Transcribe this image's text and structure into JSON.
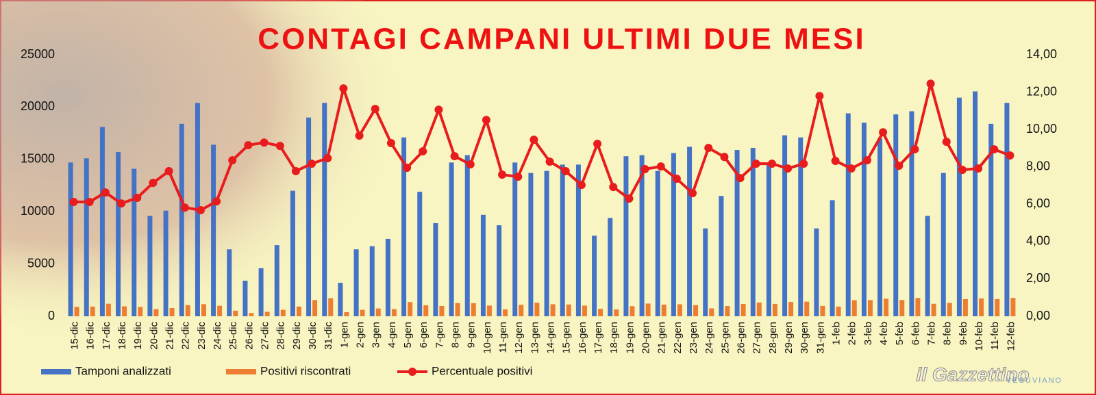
{
  "chart_data": {
    "type": "bar",
    "title": "CONTAGI CAMPANI ULTIMI DUE MESI",
    "watermark": "il Gazzettino",
    "watermark_sub": "VESUVIANO",
    "categories": [
      "15-dic",
      "16-dic",
      "17-dic",
      "18-dic",
      "19-dic",
      "20-dic",
      "21-dic",
      "22-dic",
      "23-dic",
      "24-dic",
      "25-dic",
      "26-dic",
      "27-dic",
      "28-dic",
      "29-dic",
      "30-dic",
      "31-dic",
      "1-gen",
      "2-gen",
      "3-gen",
      "4-gen",
      "5-gen",
      "6-gen",
      "7-gen",
      "8-gen",
      "9-gen",
      "10-gen",
      "11-gen",
      "12-gen",
      "13-gen",
      "14-gen",
      "15-gen",
      "16-gen",
      "17-gen",
      "18-gen",
      "19-gen",
      "20-gen",
      "21-gen",
      "22-gen",
      "23-gen",
      "24-gen",
      "25-gen",
      "26-gen",
      "27-gen",
      "28-gen",
      "29-gen",
      "30-gen",
      "31-gen",
      "1-feb",
      "2-feb",
      "3-feb",
      "4-feb",
      "5-feb",
      "6-feb",
      "7-feb",
      "8-feb",
      "9-feb",
      "10-feb",
      "11-feb",
      "12-feb"
    ],
    "series": [
      {
        "name": "Tamponi analizzati",
        "color": "#4472c4",
        "type": "bar",
        "values": [
          14700,
          15100,
          18100,
          15700,
          14100,
          9600,
          10100,
          18400,
          20400,
          16400,
          6400,
          3400,
          4600,
          6800,
          12000,
          19000,
          20400,
          3200,
          6400,
          6700,
          7400,
          17100,
          11900,
          8900,
          14700,
          15400,
          9700,
          8700,
          14700,
          13700,
          13900,
          14500,
          14500,
          7700,
          9400,
          15300,
          15400,
          13900,
          15600,
          16200,
          8400,
          11500,
          15900,
          16100,
          14500,
          17300,
          17100,
          8400,
          11100,
          19400,
          18500,
          17000,
          19300,
          19600,
          9600,
          13700,
          20900,
          21500,
          18400,
          20400
        ]
      },
      {
        "name": "Positivi riscontrati",
        "color": "#ed7d31",
        "type": "bar",
        "values": [
          900,
          924,
          1200,
          948,
          894,
          685,
          785,
          1071,
          1159,
          1009,
          534,
          311,
          428,
          620,
          932,
          1552,
          1726,
          390,
          619,
          744,
          686,
          1359,
          1051,
          984,
          1260,
          1252,
          1019,
          659,
          1098,
          1295,
          1151,
          1127,
          1019,
          711,
          650,
          964,
          1214,
          1115,
          1148,
          1068,
          757,
          981,
          1177,
          1315,
          1185,
          1368,
          1397,
          990,
          924,
          1535,
          1545,
          1675,
          1556,
          1752,
          1195,
          1280,
          1639,
          1701,
          1645,
          1756
        ]
      },
      {
        "name": "Percentuale positivi",
        "color": "#e81c1c",
        "type": "line",
        "axis": "y2",
        "values": [
          6.12,
          6.12,
          6.63,
          6.04,
          6.34,
          7.14,
          7.77,
          5.82,
          5.68,
          6.15,
          8.35,
          9.16,
          9.3,
          9.12,
          7.77,
          8.17,
          8.46,
          12.2,
          9.67,
          11.1,
          9.27,
          7.95,
          8.83,
          11.06,
          8.57,
          8.13,
          10.51,
          7.58,
          7.47,
          9.45,
          8.28,
          7.77,
          7.03,
          9.23,
          6.92,
          6.3,
          7.88,
          8.02,
          7.36,
          6.59,
          9.01,
          8.53,
          7.4,
          8.17,
          8.17,
          7.91,
          8.17,
          11.79,
          8.32,
          7.91,
          8.35,
          9.85,
          8.06,
          8.94,
          12.45,
          9.34,
          7.84,
          7.91,
          8.94,
          8.61
        ]
      }
    ],
    "ylim": [
      0,
      25000
    ],
    "yticks": [
      0,
      5000,
      10000,
      15000,
      20000,
      25000
    ],
    "y2lim": [
      0,
      14
    ],
    "y2ticks": [
      {
        "value": 0,
        "label": "0,00"
      },
      {
        "value": 2,
        "label": "2,00"
      },
      {
        "value": 4,
        "label": "4,00"
      },
      {
        "value": 6,
        "label": "6,00"
      },
      {
        "value": 8,
        "label": "8,00"
      },
      {
        "value": 10,
        "label": "10,00"
      },
      {
        "value": 12,
        "label": "12,00"
      },
      {
        "value": 14,
        "label": "14,00"
      }
    ],
    "legend": "bottom"
  }
}
